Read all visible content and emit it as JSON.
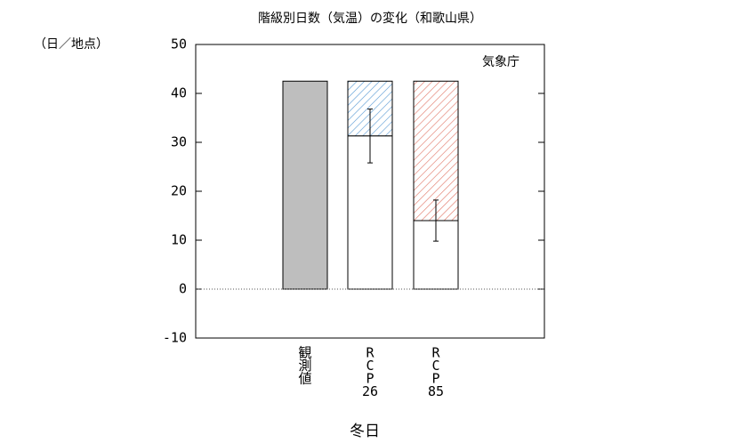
{
  "chart_data": {
    "type": "bar",
    "title": "階級別日数（気温）の変化（和歌山県）",
    "y_unit_label": "（日／地点）",
    "annotation": "気象庁",
    "x_label": "冬日",
    "categories": [
      [
        "観",
        "測",
        "値"
      ],
      [
        "R",
        "C",
        "P",
        "26"
      ],
      [
        "R",
        "C",
        "P",
        "85"
      ]
    ],
    "observed_value": 42.5,
    "observed_color": "#bebebe",
    "projected_values": [
      null,
      31.3,
      14.0
    ],
    "errors": [
      null,
      5.5,
      4.2
    ],
    "hatch_colors": [
      null,
      "#5b9bd5",
      "#e07060"
    ],
    "ylim": [
      -10,
      50
    ],
    "yticks": [
      -10,
      0,
      10,
      20,
      30,
      40,
      50
    ]
  }
}
